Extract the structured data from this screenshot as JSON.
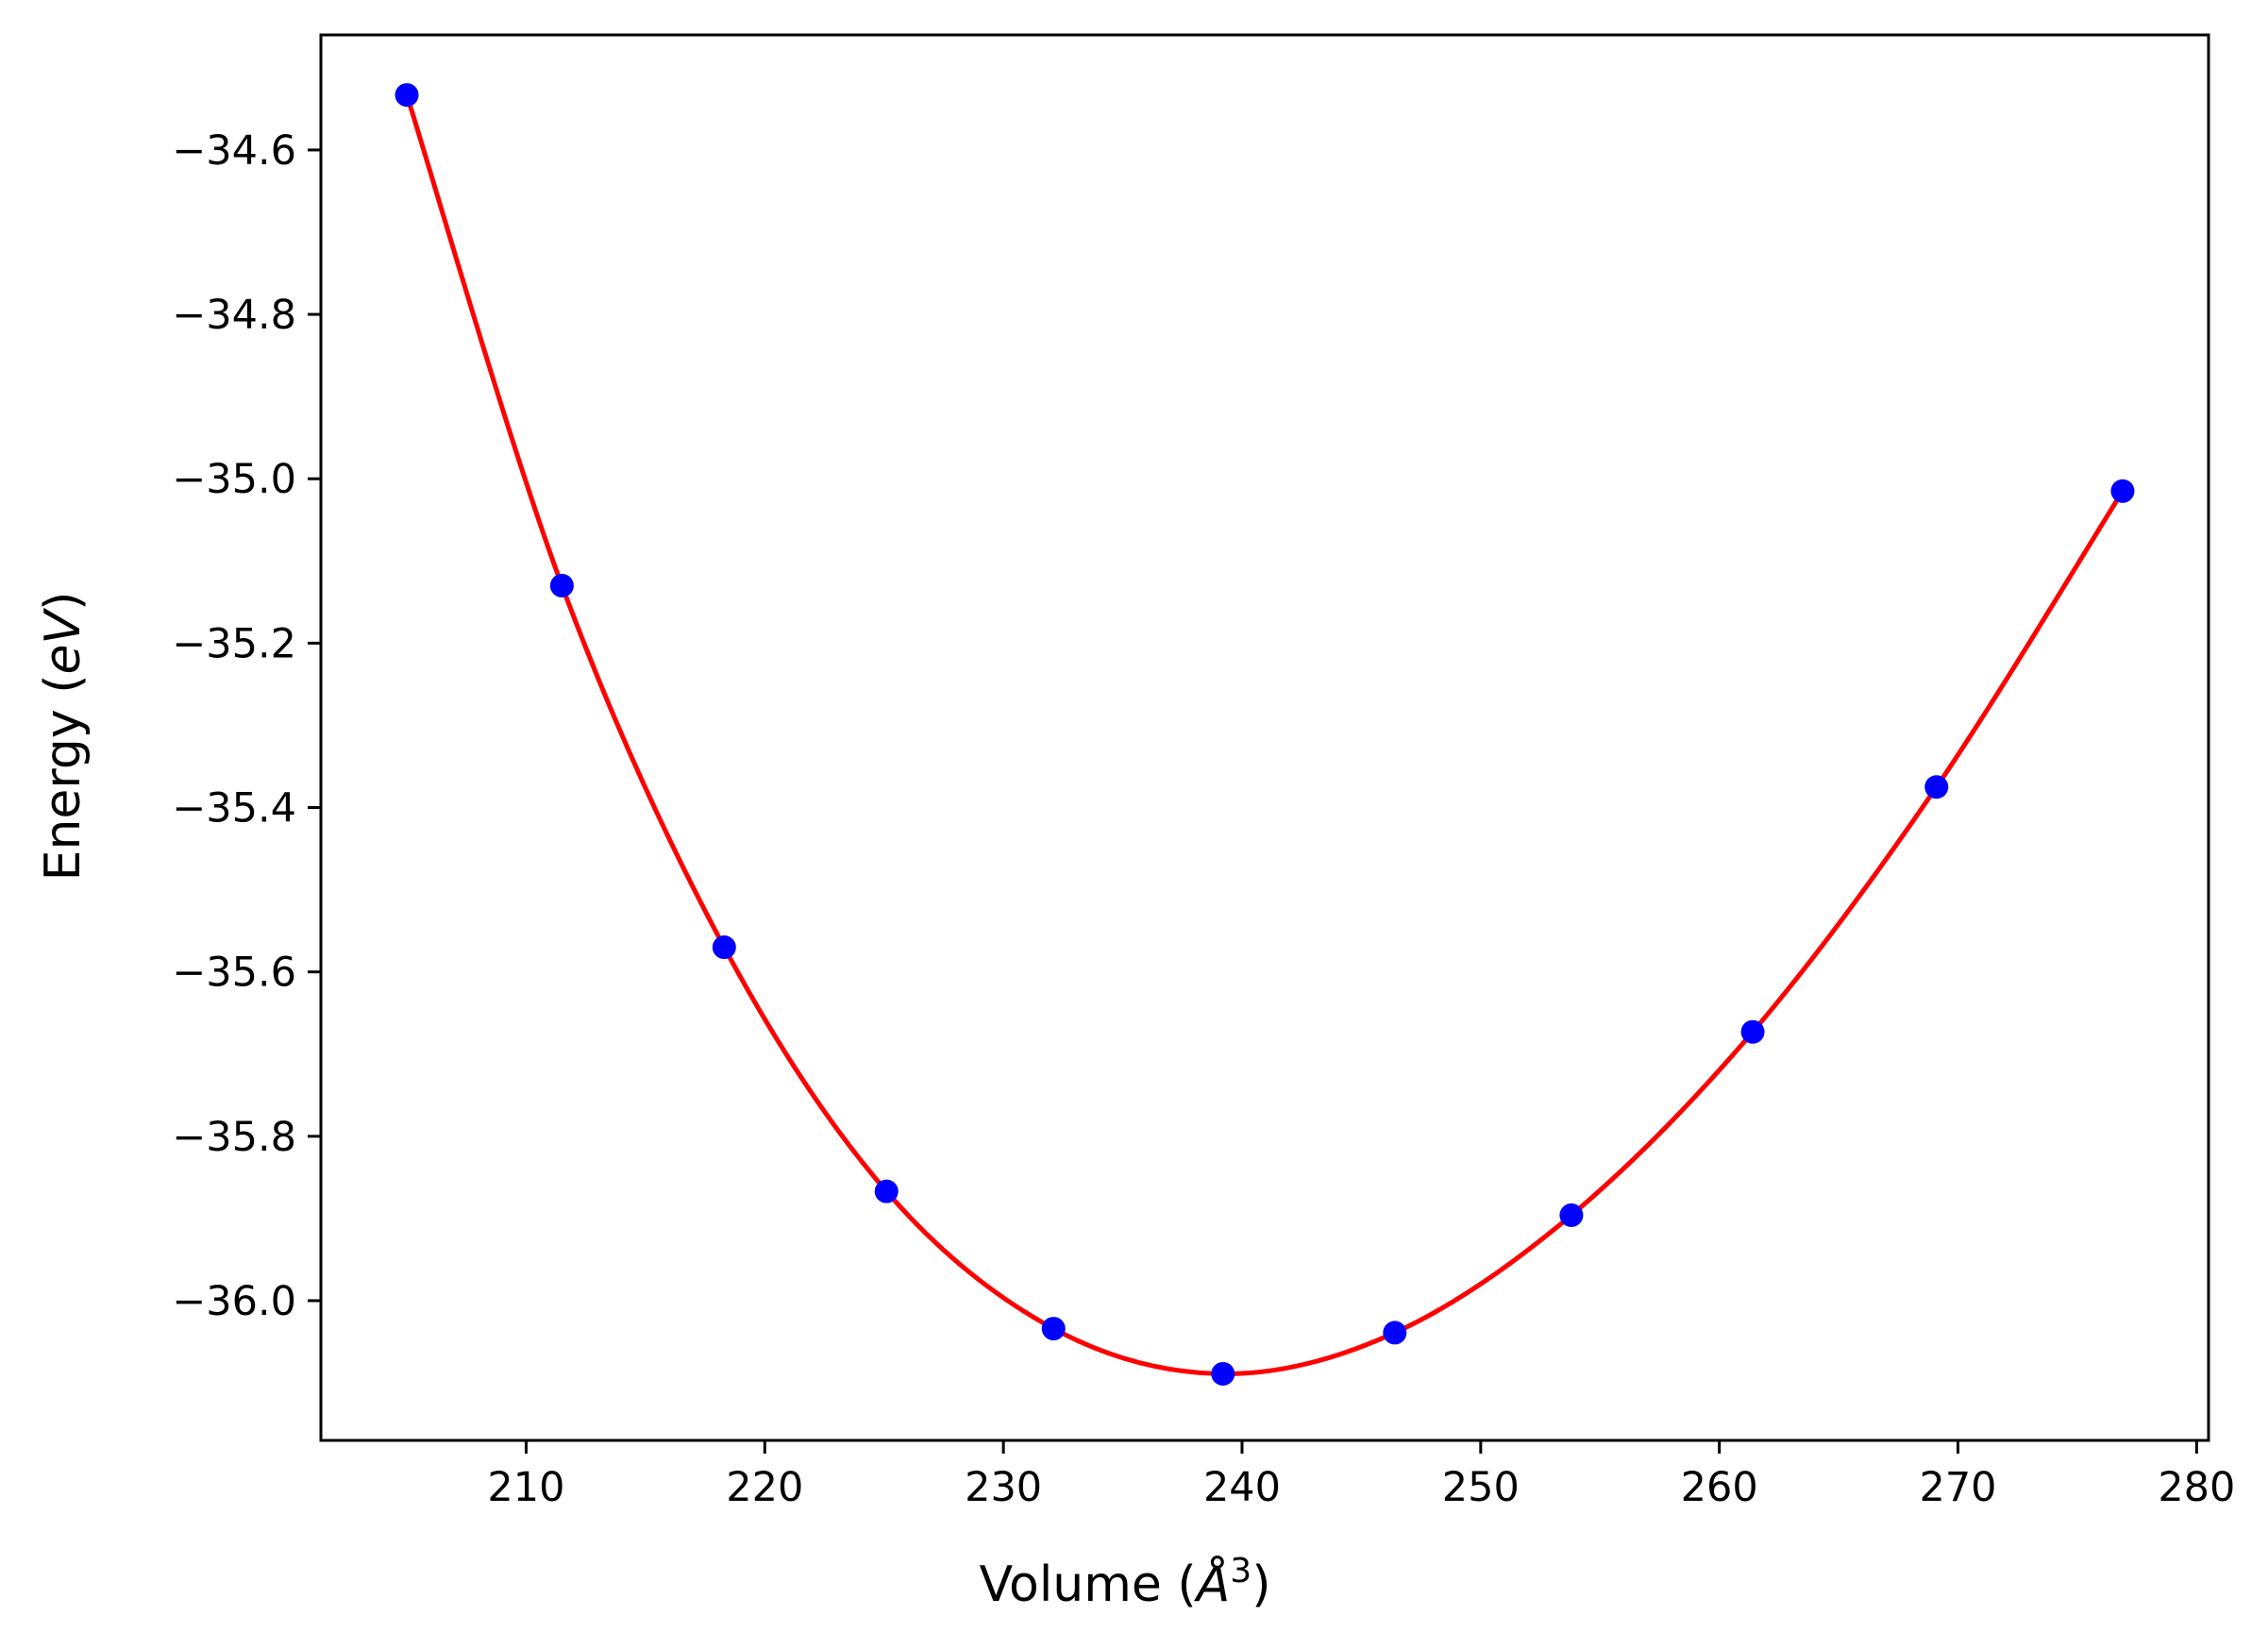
{
  "chart_data": {
    "type": "line",
    "title": "",
    "xlabel": {
      "prefix": "Volume (",
      "symbol": "Å",
      "superscript": "3",
      "suffix": ")"
    },
    "ylabel": {
      "prefix": "Energy (",
      "unit": "eV",
      "suffix": ")"
    },
    "xlim": [
      201.4,
      280.5
    ],
    "ylim": [
      -36.17,
      -34.46
    ],
    "xticks": [
      210,
      220,
      230,
      240,
      250,
      260,
      270,
      280
    ],
    "xtick_labels": [
      "210",
      "220",
      "230",
      "240",
      "250",
      "260",
      "270",
      "280"
    ],
    "yticks": [
      -34.6,
      -34.8,
      -35.0,
      -35.2,
      -35.4,
      -35.6,
      -35.8,
      -36.0
    ],
    "ytick_labels": [
      "−34.6",
      "−34.8",
      "−35.0",
      "−35.2",
      "−35.4",
      "−35.6",
      "−35.8",
      "−36.0"
    ],
    "grid": false,
    "legend": "none",
    "series": [
      {
        "kind": "scatter",
        "color": "#0000ff",
        "x": [
          205.0,
          211.5,
          218.3,
          225.1,
          232.1,
          239.2,
          246.4,
          253.8,
          261.4,
          269.1,
          276.9
        ],
        "y": [
          -34.533,
          -35.13,
          -35.57,
          -35.867,
          -36.034,
          -36.089,
          -36.039,
          -35.896,
          -35.673,
          -35.375,
          -35.015
        ]
      },
      {
        "kind": "line",
        "color": "#ff0000",
        "x": [
          205.0,
          211.5,
          218.3,
          225.1,
          232.1,
          239.2,
          246.4,
          253.8,
          261.4,
          269.1,
          276.9
        ],
        "y": [
          -34.533,
          -35.13,
          -35.57,
          -35.867,
          -36.034,
          -36.089,
          -36.039,
          -35.896,
          -35.673,
          -35.375,
          -35.015
        ]
      }
    ]
  }
}
